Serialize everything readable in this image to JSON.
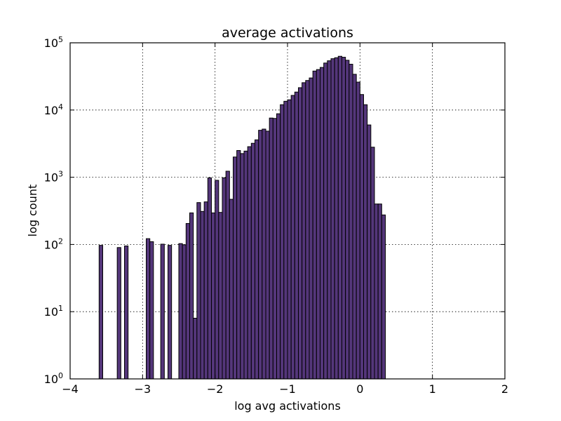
{
  "chart_data": {
    "type": "bar",
    "title": "average activations",
    "xlabel": "log avg activations",
    "ylabel": "log count",
    "xlim": [
      -4,
      2
    ],
    "ylim": [
      1,
      100000
    ],
    "yscale": "log",
    "grid": true,
    "bar_color": "#54367a",
    "x_ticks": [
      "−4",
      "−3",
      "−2",
      "−1",
      "0",
      "1",
      "2"
    ],
    "y_ticks": [
      {
        "base": "10",
        "exp": "0"
      },
      {
        "base": "10",
        "exp": "1"
      },
      {
        "base": "10",
        "exp": "2"
      },
      {
        "base": "10",
        "exp": "3"
      },
      {
        "base": "10",
        "exp": "4"
      },
      {
        "base": "10",
        "exp": "5"
      }
    ],
    "bin_start": -3.7,
    "bin_width": 0.05,
    "values": [
      0,
      0,
      97,
      0,
      0,
      0,
      0,
      90,
      0,
      95,
      0,
      0,
      0,
      0,
      0,
      122,
      110,
      0,
      0,
      101,
      0,
      97,
      0,
      0,
      103,
      99,
      205,
      295,
      8,
      420,
      310,
      430,
      980,
      295,
      900,
      300,
      980,
      1230,
      470,
      2000,
      2500,
      2250,
      2450,
      2850,
      3200,
      3600,
      5000,
      5200,
      4850,
      7600,
      7500,
      8800,
      12000,
      13500,
      14200,
      16500,
      18500,
      21500,
      25500,
      27500,
      30000,
      38000,
      40000,
      43000,
      50000,
      54000,
      58000,
      60000,
      63000,
      61000,
      55000,
      48000,
      34000,
      26000,
      17000,
      12000,
      6000,
      2800,
      400,
      400,
      275
    ]
  }
}
